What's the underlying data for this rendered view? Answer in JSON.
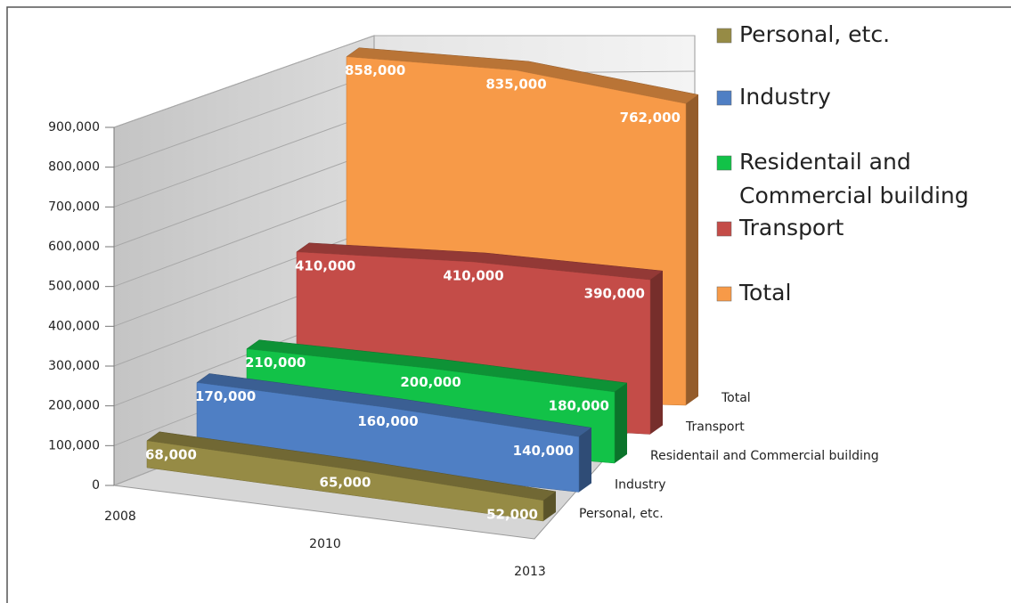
{
  "chart_data": {
    "type": "area3d",
    "categories": [
      "2008",
      "2010",
      "2013"
    ],
    "series": [
      {
        "name": "Personal, etc.",
        "color": "#968b45",
        "values": [
          68000,
          65000,
          52000
        ],
        "value_labels": [
          "68,000",
          "65,000",
          "52,000"
        ]
      },
      {
        "name": "Industry",
        "color": "#4f7fc4",
        "values": [
          170000,
          160000,
          140000
        ],
        "value_labels": [
          "170,000",
          "160,000",
          "140,000"
        ]
      },
      {
        "name": "Residentail and Commercial building",
        "color": "#12c248",
        "values": [
          210000,
          200000,
          180000
        ],
        "value_labels": [
          "210,000",
          "200,000",
          "180,000"
        ]
      },
      {
        "name": "Transport",
        "color": "#c44c48",
        "values": [
          410000,
          410000,
          390000
        ],
        "value_labels": [
          "410,000",
          "410,000",
          "390,000"
        ]
      },
      {
        "name": "Total",
        "color": "#f79a48",
        "values": [
          858000,
          835000,
          762000
        ],
        "value_labels": [
          "858,000",
          "835,000",
          "762,000"
        ]
      }
    ],
    "ylim": [
      0,
      900000
    ],
    "yticks": [
      0,
      {
        "value": 100000,
        "label": "100,000"
      },
      {
        "value": 200000,
        "label": "200,000"
      },
      {
        "value": 300000,
        "label": "300,000"
      },
      {
        "value": 400000,
        "label": "400,000"
      },
      {
        "value": 500000,
        "label": "500,000"
      },
      {
        "value": 600000,
        "label": "600,000"
      },
      {
        "value": 700000,
        "label": "700,000"
      },
      {
        "value": 800000,
        "label": "800,000"
      },
      {
        "value": 900000,
        "label": "900,000"
      }
    ],
    "grid": true,
    "legend": "right"
  }
}
